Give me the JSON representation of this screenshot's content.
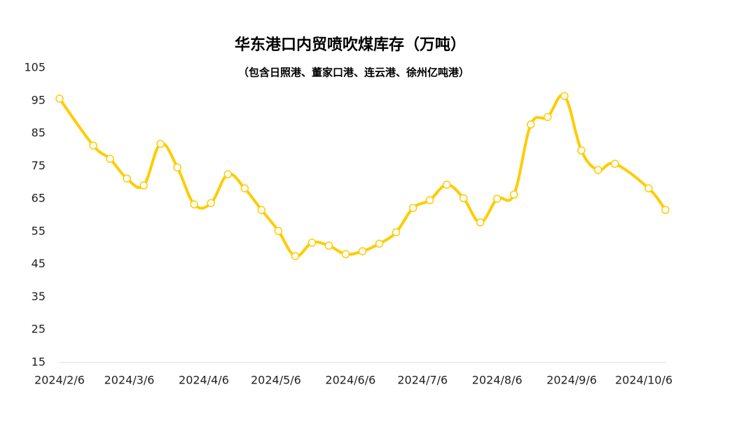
{
  "chart_data": {
    "type": "line",
    "title": "华东港口内贸喷吹煤库存（万吨）",
    "subtitle": "（包含日照港、董家口港、连云港、徐州亿吨港）",
    "x": [
      "2024/2/6",
      "2024/2/20",
      "2024/2/27",
      "2024/3/5",
      "2024/3/12",
      "2024/3/19",
      "2024/3/26",
      "2024/4/2",
      "2024/4/9",
      "2024/4/16",
      "2024/4/23",
      "2024/4/30",
      "2024/5/7",
      "2024/5/14",
      "2024/5/21",
      "2024/5/28",
      "2024/6/4",
      "2024/6/11",
      "2024/6/18",
      "2024/6/25",
      "2024/7/2",
      "2024/7/9",
      "2024/7/16",
      "2024/7/23",
      "2024/7/30",
      "2024/8/6",
      "2024/8/13",
      "2024/8/20",
      "2024/8/27",
      "2024/9/3",
      "2024/9/10",
      "2024/9/17",
      "2024/9/24",
      "2024/10/8",
      "2024/10/15"
    ],
    "series": [
      {
        "name": "库存",
        "color": "#ffcc00",
        "values": [
          95.6,
          81.3,
          77.2,
          71.2,
          69.1,
          81.8,
          74.6,
          63.3,
          63.7,
          72.5,
          68.2,
          61.6,
          55.2,
          47.5,
          51.6,
          50.7,
          48.1,
          49.0,
          51.3,
          54.8,
          62.2,
          64.6,
          69.3,
          65.2,
          57.8,
          65.0,
          66.3,
          87.7,
          90.0,
          96.4,
          79.8,
          73.8,
          75.7,
          68.2,
          61.6
        ]
      }
    ],
    "xlim": [
      "2024/2/6",
      "2024/10/15"
    ],
    "xticks": [
      "2024/2/6",
      "2024/3/6",
      "2024/4/6",
      "2024/5/6",
      "2024/6/6",
      "2024/7/6",
      "2024/8/6",
      "2024/9/6",
      "2024/10/6"
    ],
    "ylim": [
      15,
      105
    ],
    "yticks": [
      15,
      25,
      35,
      45,
      55,
      65,
      75,
      85,
      95,
      105
    ]
  }
}
